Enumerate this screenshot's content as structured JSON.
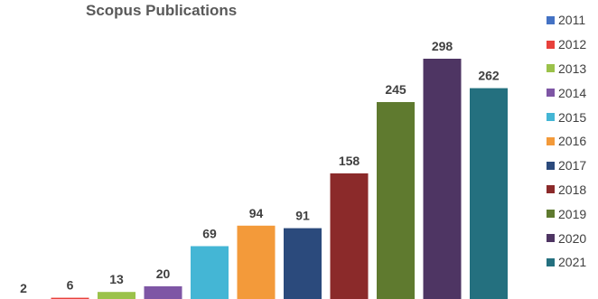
{
  "chart_data": {
    "type": "bar",
    "title": "Scopus Publications",
    "categories": [
      "2011",
      "2012",
      "2013",
      "2014",
      "2015",
      "2016",
      "2017",
      "2018",
      "2019",
      "2020",
      "2021"
    ],
    "values": [
      2,
      6,
      13,
      20,
      69,
      94,
      91,
      158,
      245,
      298,
      262
    ],
    "colors": [
      "#4472c4",
      "#e8413b",
      "#9bc24a",
      "#7e56a5",
      "#44b6d5",
      "#f39a3a",
      "#2b4a7c",
      "#8b2a2a",
      "#5f7a2f",
      "#4e3563",
      "#24707f"
    ],
    "data_labels": true,
    "legend": "right",
    "grid": false
  }
}
